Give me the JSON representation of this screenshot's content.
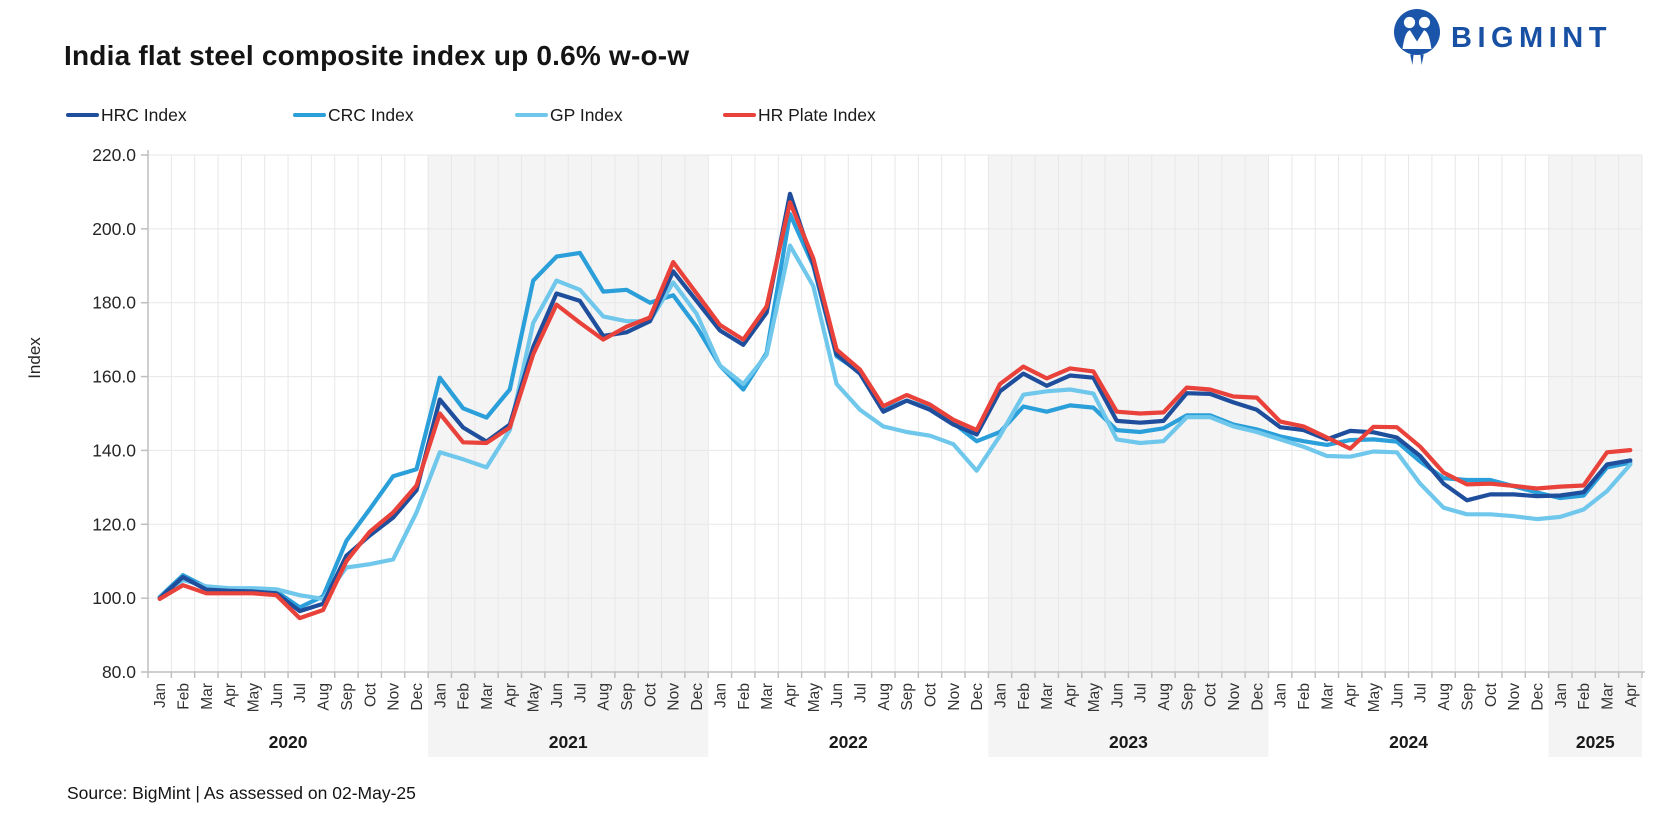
{
  "header": {
    "title": "India flat steel composite index up 0.6% w-o-w",
    "brand": "BIGMINT",
    "brand_color": "#1850A3"
  },
  "footer": {
    "source": "Source: BigMint | As assessed on 02-May-25"
  },
  "chart_data": {
    "type": "line",
    "title": "India flat steel composite index up 0.6% w-o-w",
    "xlabel": "",
    "ylabel": "Index",
    "ylim": [
      80,
      220
    ],
    "ytick_step": 20,
    "ytick_format_decimals": 1,
    "grid": true,
    "legend_position": "top",
    "band_color": "#F4F4F4",
    "grid_color": "#E7E7E7",
    "axis_color": "#BFBFBF",
    "tick_label_color": "#262626",
    "categories": [
      "Jan",
      "Feb",
      "Mar",
      "Apr",
      "May",
      "Jun",
      "Jul",
      "Aug",
      "Sep",
      "Oct",
      "Nov",
      "Dec",
      "Jan",
      "Feb",
      "Mar",
      "Apr",
      "May",
      "Jun",
      "Jul",
      "Aug",
      "Sep",
      "Oct",
      "Nov",
      "Dec",
      "Jan",
      "Feb",
      "Mar",
      "Apr",
      "May",
      "Jun",
      "Jul",
      "Aug",
      "Sep",
      "Oct",
      "Nov",
      "Dec",
      "Jan",
      "Feb",
      "Mar",
      "Apr",
      "May",
      "Jun",
      "Jul",
      "Aug",
      "Sep",
      "Oct",
      "Nov",
      "Dec",
      "Jan",
      "Feb",
      "Mar",
      "Apr",
      "May",
      "Jun",
      "Jul",
      "Aug",
      "Sep",
      "Oct",
      "Nov",
      "Dec",
      "Jan",
      "Feb",
      "Mar",
      "Apr"
    ],
    "years": [
      {
        "label": "2020",
        "months": 12,
        "shaded": false
      },
      {
        "label": "2021",
        "months": 12,
        "shaded": true
      },
      {
        "label": "2022",
        "months": 12,
        "shaded": false
      },
      {
        "label": "2023",
        "months": 12,
        "shaded": true
      },
      {
        "label": "2024",
        "months": 12,
        "shaded": false
      },
      {
        "label": "2025",
        "months": 4,
        "shaded": true
      }
    ],
    "series": [
      {
        "name": "HRC Index",
        "color": "#1F4E9C",
        "values": [
          100.0,
          105.7,
          102.3,
          102.0,
          101.8,
          101.3,
          96.5,
          98.5,
          111.5,
          117.0,
          121.8,
          129.2,
          153.8,
          146.2,
          142.4,
          147.0,
          168.0,
          182.5,
          180.5,
          171.0,
          172.0,
          175.0,
          188.5,
          180.5,
          172.5,
          168.6,
          177.3,
          209.5,
          190.5,
          166.0,
          160.8,
          150.5,
          153.5,
          151.0,
          147.0,
          144.3,
          156.0,
          160.8,
          157.5,
          160.3,
          159.7,
          148.0,
          147.5,
          148.0,
          155.5,
          155.3,
          153.0,
          151.0,
          146.3,
          145.5,
          143.0,
          145.3,
          144.9,
          143.5,
          138.5,
          131.0,
          126.5,
          128.1,
          128.1,
          127.6,
          127.8,
          128.7,
          136.2,
          137.3
        ]
      },
      {
        "name": "CRC Index",
        "color": "#2B9FD9",
        "values": [
          100.3,
          106.2,
          103.0,
          102.5,
          102.3,
          101.8,
          97.5,
          100.5,
          115.5,
          124.1,
          133.0,
          134.9,
          159.7,
          151.4,
          148.9,
          156.5,
          186.0,
          192.5,
          193.5,
          183.0,
          183.5,
          180.0,
          182.0,
          173.5,
          163.0,
          156.5,
          166.4,
          204.0,
          190.0,
          165.5,
          161.2,
          151.0,
          153.5,
          151.4,
          147.4,
          142.5,
          145.0,
          151.9,
          150.5,
          152.2,
          151.6,
          145.5,
          145.0,
          146.0,
          149.5,
          149.5,
          147.0,
          145.7,
          143.8,
          142.5,
          141.5,
          142.8,
          143.0,
          142.4,
          137.0,
          132.5,
          132.0,
          132.0,
          130.3,
          128.6,
          127.1,
          127.8,
          135.4,
          136.7
        ]
      },
      {
        "name": "GP Index",
        "color": "#70C7EC",
        "values": [
          100.3,
          104.9,
          103.2,
          102.7,
          102.7,
          102.4,
          100.8,
          99.8,
          108.3,
          109.2,
          110.5,
          123.2,
          139.5,
          137.6,
          135.4,
          145.5,
          174.5,
          186.0,
          183.5,
          176.3,
          175.0,
          175.0,
          185.5,
          177.0,
          163.0,
          158.0,
          165.9,
          195.5,
          184.5,
          158.0,
          151.0,
          146.5,
          145.0,
          144.0,
          141.7,
          134.5,
          144.0,
          155.1,
          156.0,
          156.5,
          155.4,
          143.0,
          142.0,
          142.5,
          149.0,
          149.0,
          146.5,
          145.0,
          143.0,
          141.0,
          138.5,
          138.3,
          139.7,
          139.5,
          131.0,
          124.5,
          122.7,
          122.7,
          122.2,
          121.4,
          122.0,
          124.0,
          129.0,
          136.2
        ]
      },
      {
        "name": "HR Plate Index",
        "color": "#E8423B",
        "values": [
          99.8,
          103.5,
          101.3,
          101.3,
          101.3,
          100.8,
          94.6,
          96.8,
          110.0,
          118.0,
          123.2,
          130.5,
          150.0,
          142.2,
          142.0,
          146.2,
          166.0,
          179.5,
          174.6,
          170.0,
          173.5,
          176.0,
          191.0,
          182.5,
          174.0,
          170.0,
          179.0,
          207.2,
          192.0,
          167.3,
          161.9,
          152.0,
          155.0,
          152.4,
          148.3,
          145.5,
          158.0,
          162.7,
          159.5,
          162.2,
          161.4,
          150.5,
          150.0,
          150.3,
          157.0,
          156.5,
          154.6,
          154.3,
          147.8,
          146.5,
          143.5,
          140.5,
          146.4,
          146.3,
          141.0,
          134.0,
          130.8,
          131.0,
          130.4,
          129.7,
          130.2,
          130.5,
          139.5,
          140.1
        ]
      }
    ],
    "draw_order": [
      1,
      2,
      0,
      3
    ]
  }
}
